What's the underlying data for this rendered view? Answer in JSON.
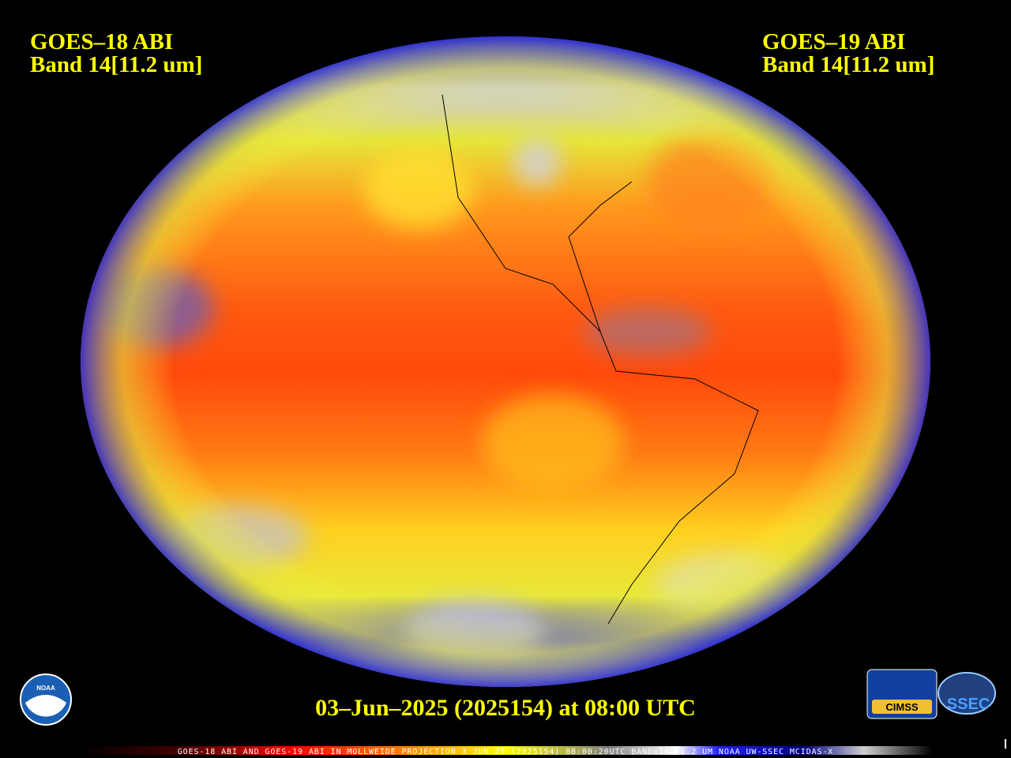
{
  "header": {
    "left": {
      "satellite": "GOES–18 ABI",
      "band": "Band 14[11.2 um]"
    },
    "right": {
      "satellite": "GOES–19 ABI",
      "band": "Band 14[11.2 um]"
    }
  },
  "timestamp": "03–Jun–2025 (2025154) at 08:00 UTC",
  "caption": "GOES-18 ABI AND GOES-19 ABI IN MOLLWEIDE PROJECTION 3 JUN 25 (2025154) 08:00:20UTC BAND=14 11.2 UM NOAA UW-SSEC MCIDAS-X",
  "logos": {
    "noaa": "NOAA",
    "cimss": "CIMSS",
    "ssec": "SSEC"
  }
}
